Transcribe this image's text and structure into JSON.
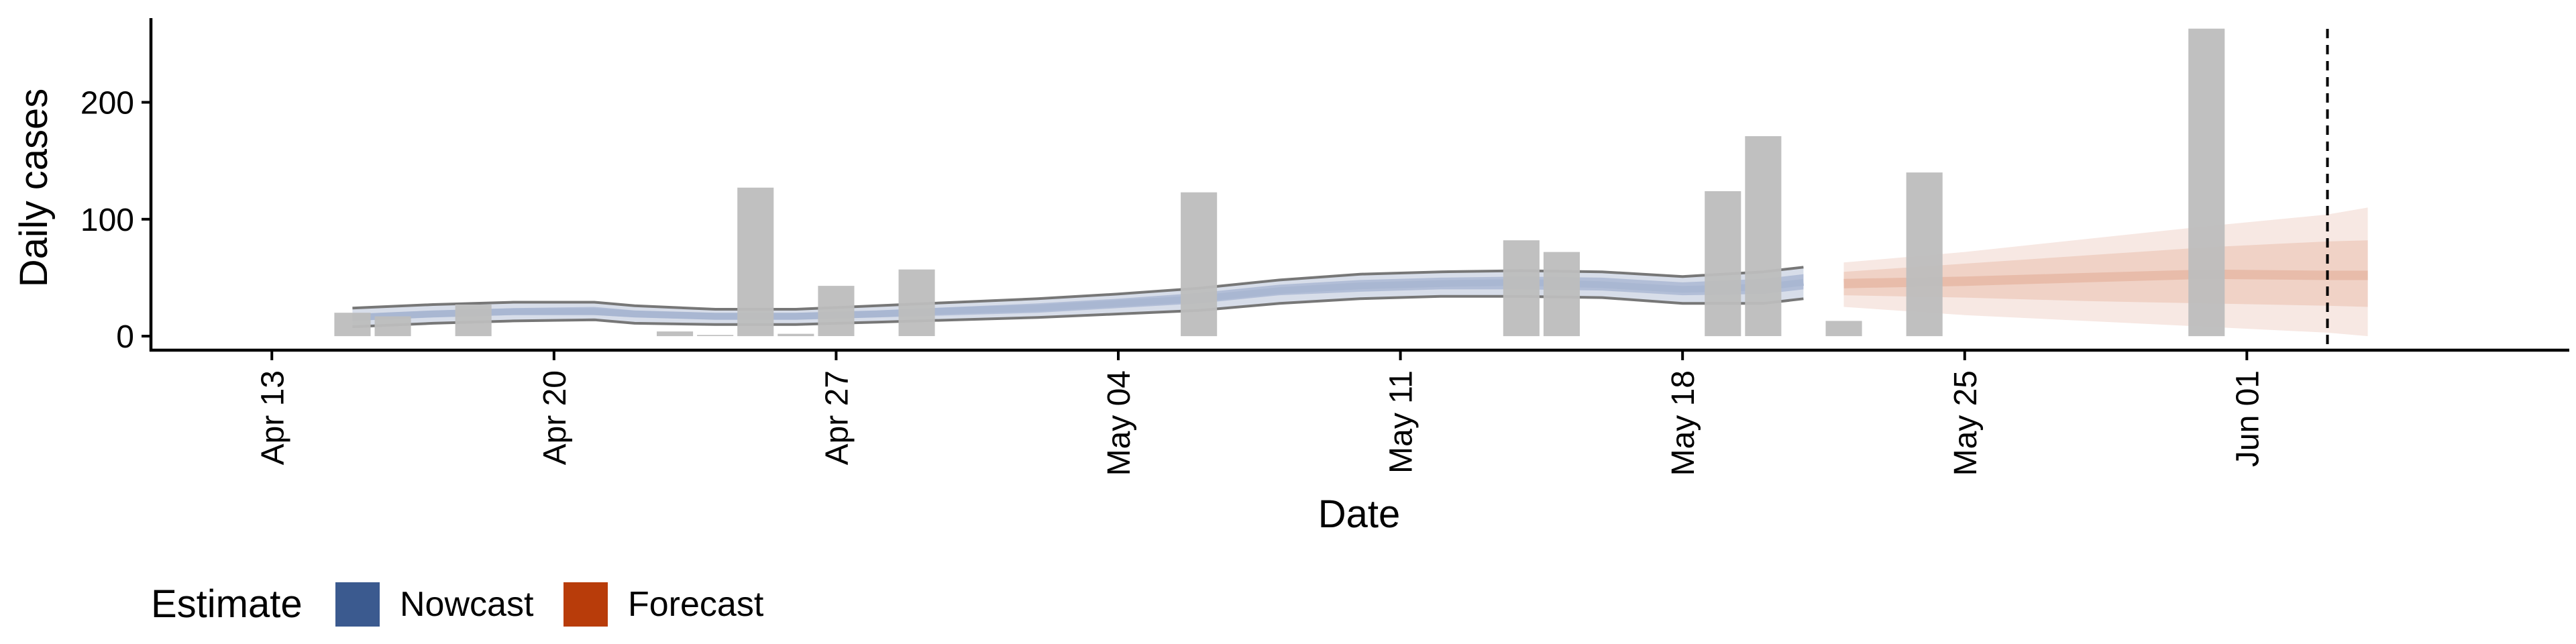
{
  "chart_data": {
    "type": "bar",
    "title": "",
    "xlabel": "Date",
    "ylabel": "Daily cases",
    "ylim": [
      -12,
      272
    ],
    "xlim": [
      "2020-04-10",
      "2020-06-09"
    ],
    "yticks": [
      0,
      100,
      200
    ],
    "xticks": [
      {
        "date": "2020-04-13",
        "label": "Apr 13"
      },
      {
        "date": "2020-04-20",
        "label": "Apr 20"
      },
      {
        "date": "2020-04-27",
        "label": "Apr 27"
      },
      {
        "date": "2020-05-04",
        "label": "May 04"
      },
      {
        "date": "2020-05-11",
        "label": "May 11"
      },
      {
        "date": "2020-05-18",
        "label": "May 18"
      },
      {
        "date": "2020-05-25",
        "label": "May 25"
      },
      {
        "date": "2020-06-01",
        "label": "Jun 01"
      }
    ],
    "vline_date": "2020-06-03",
    "grid": false,
    "legend": {
      "title": "Estimate",
      "position": "bottom-left",
      "items": [
        {
          "label": "Nowcast",
          "color": "#3b5a8f"
        },
        {
          "label": "Forecast",
          "color": "#b83c0a"
        }
      ]
    },
    "colors": {
      "bars": "#bdbdbd",
      "nowcast_band": "#c9d1e2",
      "nowcast_core": "#a9b7d2",
      "nowcast_line": "#777777",
      "forecast_outer": "#f7e8e3",
      "forecast_inner": "#f0d2c6",
      "forecast_core": "#e8bcaa"
    },
    "bars": [
      {
        "date": "2020-04-15",
        "value": 20
      },
      {
        "date": "2020-04-16",
        "value": 17
      },
      {
        "date": "2020-04-18",
        "value": 27
      },
      {
        "date": "2020-04-23",
        "value": 4
      },
      {
        "date": "2020-04-24",
        "value": 1
      },
      {
        "date": "2020-04-25",
        "value": 127
      },
      {
        "date": "2020-04-26",
        "value": 2
      },
      {
        "date": "2020-04-27",
        "value": 43
      },
      {
        "date": "2020-04-29",
        "value": 57
      },
      {
        "date": "2020-05-06",
        "value": 123
      },
      {
        "date": "2020-05-14",
        "value": 82
      },
      {
        "date": "2020-05-15",
        "value": 72
      },
      {
        "date": "2020-05-19",
        "value": 124
      },
      {
        "date": "2020-05-20",
        "value": 171
      },
      {
        "date": "2020-05-22",
        "value": 13
      },
      {
        "date": "2020-05-24",
        "value": 140
      },
      {
        "date": "2020-05-31",
        "value": 263
      }
    ],
    "nowcast": [
      {
        "date": "2020-04-15",
        "lower": 8,
        "q25": 13,
        "median": 16,
        "q75": 19,
        "upper": 24
      },
      {
        "date": "2020-04-17",
        "lower": 11,
        "q25": 16,
        "median": 19,
        "q75": 22,
        "upper": 27
      },
      {
        "date": "2020-04-19",
        "lower": 13,
        "q25": 18,
        "median": 21,
        "q75": 24,
        "upper": 29
      },
      {
        "date": "2020-04-21",
        "lower": 14,
        "q25": 18,
        "median": 21,
        "q75": 25,
        "upper": 29
      },
      {
        "date": "2020-04-22",
        "lower": 11,
        "q25": 16,
        "median": 19,
        "q75": 22,
        "upper": 26
      },
      {
        "date": "2020-04-24",
        "lower": 10,
        "q25": 14,
        "median": 17,
        "q75": 20,
        "upper": 23
      },
      {
        "date": "2020-04-26",
        "lower": 10,
        "q25": 14,
        "median": 17,
        "q75": 20,
        "upper": 23
      },
      {
        "date": "2020-04-28",
        "lower": 12,
        "q25": 16,
        "median": 19,
        "q75": 22,
        "upper": 26
      },
      {
        "date": "2020-04-30",
        "lower": 14,
        "q25": 18,
        "median": 22,
        "q75": 25,
        "upper": 29
      },
      {
        "date": "2020-05-02",
        "lower": 16,
        "q25": 20,
        "median": 24,
        "q75": 28,
        "upper": 32
      },
      {
        "date": "2020-05-04",
        "lower": 19,
        "q25": 24,
        "median": 28,
        "q75": 32,
        "upper": 36
      },
      {
        "date": "2020-05-06",
        "lower": 22,
        "q25": 28,
        "median": 32,
        "q75": 37,
        "upper": 41
      },
      {
        "date": "2020-05-08",
        "lower": 28,
        "q25": 35,
        "median": 39,
        "q75": 44,
        "upper": 48
      },
      {
        "date": "2020-05-10",
        "lower": 32,
        "q25": 38,
        "median": 43,
        "q75": 48,
        "upper": 53
      },
      {
        "date": "2020-05-12",
        "lower": 34,
        "q25": 40,
        "median": 45,
        "q75": 50,
        "upper": 55
      },
      {
        "date": "2020-05-14",
        "lower": 34,
        "q25": 40,
        "median": 46,
        "q75": 51,
        "upper": 56
      },
      {
        "date": "2020-05-16",
        "lower": 33,
        "q25": 39,
        "median": 44,
        "q75": 50,
        "upper": 55
      },
      {
        "date": "2020-05-18",
        "lower": 28,
        "q25": 35,
        "median": 40,
        "q75": 46,
        "upper": 51
      },
      {
        "date": "2020-05-20",
        "lower": 28,
        "q25": 36,
        "median": 42,
        "q75": 49,
        "upper": 55
      },
      {
        "date": "2020-05-21",
        "lower": 32,
        "q25": 40,
        "median": 46,
        "q75": 53,
        "upper": 59
      }
    ],
    "forecast": [
      {
        "date": "2020-05-22",
        "lower": 25,
        "q25": 35,
        "median": 45,
        "q75": 55,
        "upper": 63
      },
      {
        "date": "2020-05-25",
        "lower": 18,
        "q25": 33,
        "median": 47,
        "q75": 62,
        "upper": 72
      },
      {
        "date": "2020-05-28",
        "lower": 13,
        "q25": 30,
        "median": 50,
        "q75": 69,
        "upper": 83
      },
      {
        "date": "2020-05-31",
        "lower": 8,
        "q25": 28,
        "median": 53,
        "q75": 76,
        "upper": 94
      },
      {
        "date": "2020-06-03",
        "lower": 3,
        "q25": 26,
        "median": 52,
        "q75": 81,
        "upper": 104
      },
      {
        "date": "2020-06-04",
        "lower": 0,
        "q25": 25,
        "median": 52,
        "q75": 82,
        "upper": 110
      }
    ]
  }
}
